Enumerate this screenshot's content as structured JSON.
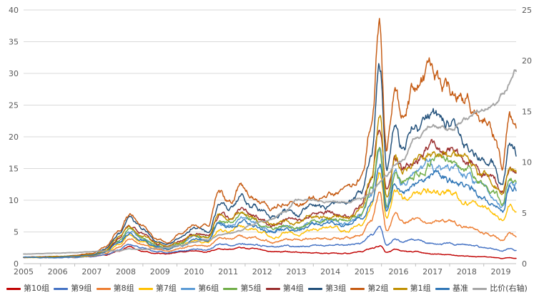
{
  "chart_data": {
    "type": "line",
    "title": "",
    "grid": "horizontal",
    "legend_position": "bottom",
    "x_axis": {
      "labels": [
        "2005",
        "2006",
        "2007",
        "2008",
        "2009",
        "2010",
        "2011",
        "2012",
        "2013",
        "2014",
        "2015",
        "2016",
        "2017",
        "2018",
        "2019"
      ],
      "range": [
        2005,
        2019.45
      ]
    },
    "left_axis": {
      "min": 0,
      "max": 40,
      "step": 5,
      "labels": [
        "0",
        "5",
        "10",
        "15",
        "20",
        "25",
        "30",
        "35",
        "40"
      ]
    },
    "right_axis": {
      "min": 0,
      "max": 25,
      "step": 5,
      "labels": [
        "0",
        "5",
        "10",
        "15",
        "20",
        "25"
      ]
    },
    "x_keyframes": [
      2005.0,
      2005.5,
      2006.0,
      2006.5,
      2007.0,
      2007.4,
      2007.8,
      2008.1,
      2008.5,
      2008.9,
      2009.2,
      2009.6,
      2010.0,
      2010.4,
      2010.75,
      2011.05,
      2011.35,
      2011.7,
      2012.0,
      2012.3,
      2012.7,
      2013.0,
      2013.5,
      2014.0,
      2014.5,
      2014.9,
      2015.2,
      2015.45,
      2015.65,
      2015.9,
      2016.1,
      2016.5,
      2017.0,
      2017.5,
      2018.0,
      2018.5,
      2018.8,
      2019.05,
      2019.25,
      2019.45
    ],
    "series": [
      {
        "name": "第10组",
        "color": "#C00000",
        "axis": "left",
        "values": [
          1.0,
          0.98,
          1.0,
          1.02,
          1.1,
          1.35,
          1.9,
          2.7,
          2.1,
          1.7,
          1.55,
          1.75,
          2.0,
          1.9,
          2.4,
          2.3,
          2.5,
          2.3,
          2.1,
          1.9,
          1.9,
          1.8,
          1.7,
          1.6,
          1.6,
          1.9,
          2.4,
          2.8,
          1.7,
          2.1,
          1.9,
          1.8,
          1.5,
          1.35,
          1.2,
          1.05,
          0.95,
          0.8,
          0.95,
          0.85
        ]
      },
      {
        "name": "第9组",
        "color": "#4472C4",
        "axis": "left",
        "values": [
          1.0,
          0.97,
          1.0,
          1.05,
          1.15,
          1.45,
          2.1,
          3.1,
          2.4,
          1.9,
          1.75,
          2.0,
          2.35,
          2.2,
          3.0,
          2.85,
          3.2,
          3.0,
          2.75,
          2.5,
          2.7,
          2.6,
          2.8,
          2.9,
          2.8,
          3.2,
          4.3,
          5.5,
          3.0,
          3.9,
          3.5,
          3.6,
          3.3,
          3.1,
          2.9,
          2.5,
          2.3,
          1.95,
          2.35,
          2.05
        ]
      },
      {
        "name": "第8组",
        "color": "#ED7D31",
        "axis": "left",
        "values": [
          1.0,
          1.0,
          1.03,
          1.08,
          1.22,
          1.65,
          2.6,
          3.7,
          2.9,
          2.2,
          2.0,
          2.4,
          2.95,
          2.75,
          4.2,
          3.95,
          4.5,
          4.2,
          3.8,
          3.4,
          3.8,
          3.7,
          4.1,
          4.2,
          4.0,
          4.7,
          6.8,
          11.0,
          5.2,
          7.6,
          6.6,
          6.9,
          6.6,
          6.3,
          5.6,
          4.7,
          4.4,
          3.6,
          4.9,
          4.3
        ]
      },
      {
        "name": "第7组",
        "color": "#FFC000",
        "axis": "left",
        "values": [
          1.0,
          1.0,
          1.05,
          1.12,
          1.3,
          1.85,
          3.1,
          4.4,
          3.4,
          2.5,
          2.25,
          2.85,
          3.6,
          3.35,
          5.5,
          5.1,
          6.0,
          5.5,
          4.9,
          4.4,
          5.0,
          4.8,
          5.5,
          5.6,
          5.3,
          6.3,
          9.3,
          15.0,
          7.6,
          11.5,
          10.0,
          10.8,
          11.5,
          11.0,
          10.0,
          8.6,
          8.0,
          6.8,
          9.2,
          8.6
        ]
      },
      {
        "name": "第6组",
        "color": "#5B9BD5",
        "axis": "left",
        "values": [
          1.0,
          1.01,
          1.06,
          1.14,
          1.36,
          1.95,
          3.5,
          5.0,
          3.9,
          2.75,
          2.45,
          3.15,
          4.1,
          3.8,
          6.5,
          6.0,
          7.1,
          6.5,
          5.7,
          5.2,
          5.8,
          5.6,
          6.5,
          6.6,
          6.3,
          7.5,
          11.0,
          18.5,
          9.0,
          14.5,
          12.5,
          13.5,
          15.0,
          14.3,
          13.5,
          11.5,
          10.7,
          9.0,
          12.6,
          12.6
        ]
      },
      {
        "name": "第5组",
        "color": "#70AD47",
        "axis": "left",
        "values": [
          1.0,
          1.02,
          1.07,
          1.16,
          1.39,
          2.0,
          3.7,
          5.3,
          4.1,
          2.85,
          2.55,
          3.3,
          4.3,
          4.0,
          6.9,
          6.4,
          7.6,
          6.9,
          6.1,
          5.5,
          6.2,
          6.0,
          6.9,
          7.0,
          6.7,
          8.0,
          11.8,
          18.0,
          9.6,
          15.0,
          13.0,
          14.5,
          16.3,
          15.5,
          14.5,
          12.3,
          11.4,
          9.6,
          13.3,
          13.2
        ]
      },
      {
        "name": "第4组",
        "color": "#9A2D2D",
        "axis": "left",
        "values": [
          1.0,
          1.03,
          1.1,
          1.2,
          1.45,
          2.2,
          4.2,
          6.0,
          4.6,
          3.15,
          2.75,
          3.65,
          4.8,
          4.5,
          7.8,
          7.2,
          8.6,
          7.8,
          6.9,
          6.2,
          7.0,
          6.7,
          7.8,
          7.9,
          7.5,
          9.0,
          13.3,
          22.0,
          11.2,
          17.5,
          15.0,
          17.0,
          18.8,
          17.5,
          16.5,
          14.0,
          13.0,
          11.0,
          14.8,
          14.5
        ]
      },
      {
        "name": "第3组",
        "color": "#1F4E79",
        "axis": "left",
        "values": [
          1.0,
          1.04,
          1.12,
          1.26,
          1.52,
          2.4,
          4.8,
          6.8,
          5.2,
          3.5,
          3.0,
          4.05,
          5.4,
          5.0,
          9.3,
          8.5,
          10.4,
          9.2,
          8.1,
          7.2,
          8.2,
          7.8,
          9.2,
          9.3,
          8.8,
          10.5,
          16.5,
          31.0,
          14.5,
          23.0,
          19.0,
          21.5,
          23.0,
          22.0,
          19.0,
          16.5,
          15.5,
          12.6,
          17.9,
          17.0
        ]
      },
      {
        "name": "第2组",
        "color": "#C55A11",
        "axis": "left",
        "values": [
          1.0,
          1.05,
          1.15,
          1.32,
          1.62,
          2.6,
          5.5,
          7.8,
          6.0,
          3.9,
          3.3,
          4.55,
          6.2,
          5.8,
          11.0,
          9.8,
          12.0,
          10.7,
          9.3,
          8.3,
          9.8,
          9.3,
          10.5,
          10.9,
          11.0,
          13.0,
          21.0,
          36.5,
          18.0,
          29.0,
          24.0,
          28.0,
          30.0,
          28.0,
          26.0,
          22.0,
          20.0,
          15.5,
          23.0,
          21.0
        ]
      },
      {
        "name": "第1组",
        "color": "#BF8F00",
        "axis": "left",
        "values": [
          1.0,
          1.02,
          1.09,
          1.18,
          1.42,
          2.1,
          4.0,
          5.7,
          4.4,
          3.0,
          2.65,
          3.5,
          4.6,
          4.3,
          7.5,
          6.9,
          8.3,
          7.5,
          6.6,
          6.0,
          6.8,
          6.5,
          7.5,
          7.6,
          7.2,
          8.6,
          12.8,
          21.0,
          10.8,
          17.0,
          14.5,
          16.0,
          17.6,
          16.8,
          15.8,
          13.3,
          12.4,
          10.5,
          14.2,
          14.0
        ]
      },
      {
        "name": "基准",
        "color": "#2E75B6",
        "axis": "left",
        "values": [
          1.0,
          1.0,
          1.05,
          1.13,
          1.33,
          1.9,
          3.3,
          4.7,
          3.7,
          2.65,
          2.35,
          3.0,
          3.9,
          3.6,
          6.1,
          5.7,
          6.7,
          6.1,
          5.4,
          4.9,
          5.5,
          5.3,
          6.1,
          6.2,
          5.9,
          7.0,
          10.3,
          17.0,
          8.6,
          13.0,
          11.5,
          12.5,
          13.8,
          13.2,
          12.5,
          10.5,
          9.8,
          8.3,
          11.9,
          12.0
        ]
      },
      {
        "name": "比价(右轴)",
        "color": "#A6A6A6",
        "axis": "right",
        "values": [
          0.95,
          1.0,
          1.05,
          1.1,
          1.2,
          1.25,
          1.3,
          1.45,
          1.4,
          1.5,
          1.6,
          1.8,
          2.1,
          2.3,
          2.8,
          3.0,
          3.3,
          3.8,
          4.2,
          4.5,
          5.2,
          6.3,
          6.3,
          6.2,
          6.0,
          6.4,
          7.0,
          8.1,
          8.8,
          9.7,
          10.0,
          12.5,
          13.4,
          13.1,
          14.4,
          15.0,
          15.6,
          16.6,
          17.5,
          19.0
        ]
      }
    ]
  },
  "colors": {
    "background": "#FFFFFF",
    "grid": "#D9D9D9",
    "axis_line": "#BFBFBF",
    "axis_text": "#595959",
    "legend_text": "#404040"
  }
}
